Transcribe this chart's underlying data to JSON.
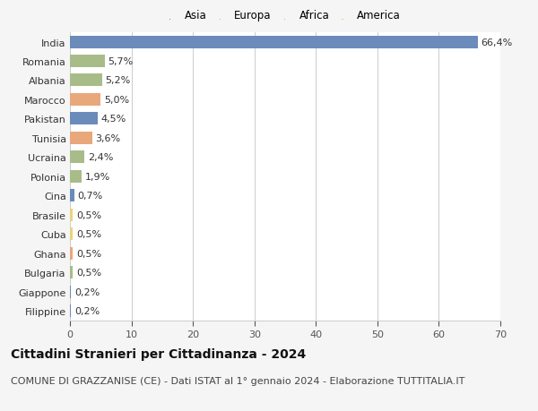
{
  "countries": [
    "India",
    "Romania",
    "Albania",
    "Marocco",
    "Pakistan",
    "Tunisia",
    "Ucraina",
    "Polonia",
    "Cina",
    "Brasile",
    "Cuba",
    "Ghana",
    "Bulgaria",
    "Giappone",
    "Filippine"
  ],
  "values": [
    66.4,
    5.7,
    5.2,
    5.0,
    4.5,
    3.6,
    2.4,
    1.9,
    0.7,
    0.5,
    0.5,
    0.5,
    0.5,
    0.2,
    0.2
  ],
  "labels": [
    "66,4%",
    "5,7%",
    "5,2%",
    "5,0%",
    "4,5%",
    "3,6%",
    "2,4%",
    "1,9%",
    "0,7%",
    "0,5%",
    "0,5%",
    "0,5%",
    "0,5%",
    "0,2%",
    "0,2%"
  ],
  "continents": [
    "Asia",
    "Europa",
    "Europa",
    "Africa",
    "Asia",
    "Africa",
    "Europa",
    "Europa",
    "Asia",
    "America",
    "America",
    "Africa",
    "Europa",
    "Asia",
    "Asia"
  ],
  "continent_colors": {
    "Asia": "#6b8cba",
    "Europa": "#a8bc8a",
    "Africa": "#e8a87c",
    "America": "#e8d47c"
  },
  "legend_order": [
    "Asia",
    "Europa",
    "Africa",
    "America"
  ],
  "background_color": "#f5f5f5",
  "plot_bg_color": "#ffffff",
  "title": "Cittadini Stranieri per Cittadinanza - 2024",
  "subtitle": "COMUNE DI GRAZZANISE (CE) - Dati ISTAT al 1° gennaio 2024 - Elaborazione TUTTITALIA.IT",
  "xlim": [
    0,
    70
  ],
  "xticks": [
    0,
    10,
    20,
    30,
    40,
    50,
    60,
    70
  ],
  "grid_color": "#cccccc",
  "bar_height": 0.65,
  "title_fontsize": 10,
  "subtitle_fontsize": 8,
  "tick_fontsize": 8,
  "label_fontsize": 8,
  "legend_fontsize": 8.5
}
